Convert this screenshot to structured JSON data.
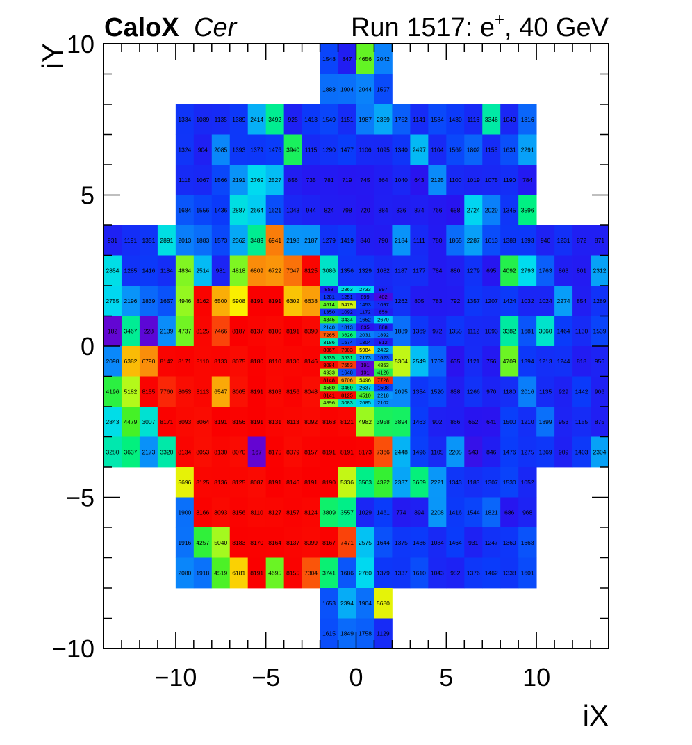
{
  "chart_data": {
    "type": "heatmap",
    "title_left_bold": "CaloX",
    "title_left_italic": "Cer",
    "title_right": "Run 1517: e",
    "title_right_sup": "+",
    "title_right_tail": ", 40 GeV",
    "xlabel": "iX",
    "ylabel": "iY",
    "xlim": [
      -14,
      14
    ],
    "ylim": [
      -10,
      10
    ],
    "xticks": [
      -10,
      -5,
      0,
      5,
      10
    ],
    "yticks": [
      -10,
      -5,
      0,
      5,
      10
    ],
    "zlim": [
      0,
      8191
    ],
    "rows": [
      {
        "y": 9,
        "x0": -2,
        "values": [
          1548,
          847,
          4656,
          2042
        ]
      },
      {
        "y": 8,
        "x0": -2,
        "values": [
          1888,
          1904,
          2044,
          1597
        ]
      },
      {
        "y": 7,
        "x0": -10,
        "values": [
          1334,
          1089,
          1135,
          1389,
          2414,
          3492,
          925,
          1413,
          1549,
          1151,
          1987,
          2359,
          1752,
          1141,
          1584,
          1430,
          1116,
          3346,
          1049,
          1816
        ]
      },
      {
        "y": 6,
        "x0": -10,
        "values": [
          1324,
          904,
          2085,
          1393,
          1379,
          1476,
          3940,
          1115,
          1290,
          1477,
          1106,
          1095,
          1340,
          2497,
          1104,
          1569,
          1802,
          1155,
          1631,
          2291
        ]
      },
      {
        "y": 5,
        "x0": -10,
        "values": [
          1118,
          1067,
          1566,
          2191,
          2769,
          2527,
          856,
          735,
          781,
          719,
          745,
          864,
          1040,
          643,
          2125,
          1100,
          1019,
          1075,
          1190,
          784
        ]
      },
      {
        "y": 4,
        "x0": -10,
        "values": [
          1684,
          1556,
          1436,
          2887,
          2664,
          1621,
          1043,
          944,
          824,
          798,
          720,
          884,
          836,
          874,
          766,
          658,
          2724,
          2029,
          1345,
          3596
        ]
      },
      {
        "y": 3,
        "x0": -14,
        "values": [
          931,
          1191,
          1351,
          2891,
          2013,
          1883,
          1573,
          2362,
          3489,
          6941,
          2198,
          2187,
          1279,
          1419,
          840,
          790,
          2184,
          1111,
          780,
          1865,
          2287,
          1613,
          1388,
          1393,
          940,
          1231,
          872,
          871
        ]
      },
      {
        "y": 2,
        "x0": -14,
        "values": [
          2854,
          1285,
          1416,
          1184,
          4834,
          2514,
          981,
          4818,
          6809,
          6722,
          7047,
          8125,
          3086,
          1356,
          1329,
          1082,
          1187,
          1177,
          784,
          880,
          1279,
          695,
          4092,
          2793,
          1763,
          863,
          801,
          2312
        ]
      },
      {
        "y": 1,
        "x0": -14,
        "values": [
          2755,
          2196,
          1839,
          1657,
          4946,
          8162,
          6500,
          5908,
          8191,
          8191,
          6302,
          6638,
          null,
          null,
          null,
          null,
          1262,
          805,
          783,
          792,
          1357,
          1207,
          1424,
          1032,
          1024,
          2274,
          854,
          1289
        ]
      },
      {
        "y": 0,
        "x0": -14,
        "values": [
          182,
          3467,
          228,
          2139,
          4737,
          8125,
          7466,
          8187,
          8137,
          8100,
          8191,
          8090,
          null,
          null,
          null,
          null,
          1889,
          1369,
          972,
          1355,
          1112,
          1093,
          3382,
          1681,
          3060,
          1464,
          1130,
          1539
        ]
      },
      {
        "y": -1,
        "x0": -14,
        "values": [
          2098,
          6382,
          6790,
          8142,
          8171,
          8110,
          8133,
          8075,
          8180,
          8110,
          8130,
          8146,
          null,
          null,
          null,
          null,
          5304,
          2549,
          1769,
          635,
          1121,
          756,
          4709,
          1394,
          1213,
          1244,
          818,
          956
        ]
      },
      {
        "y": -2,
        "x0": -14,
        "values": [
          4196,
          5182,
          8155,
          7760,
          8053,
          8113,
          6547,
          8005,
          8191,
          8103,
          8156,
          8048,
          null,
          null,
          null,
          null,
          2095,
          1354,
          1520,
          858,
          1266,
          970,
          1180,
          2016,
          1135,
          929,
          1442,
          906
        ]
      },
      {
        "y": -3,
        "x0": -14,
        "values": [
          2843,
          4479,
          3007,
          8171,
          8093,
          8064,
          8191,
          8156,
          8191,
          8131,
          8113,
          8092,
          8163,
          8121,
          4982,
          3958,
          3894,
          1463,
          902,
          866,
          652,
          641,
          1500,
          1210,
          1899,
          953,
          1155,
          875
        ]
      },
      {
        "y": -4,
        "x0": -14,
        "values": [
          3280,
          3637,
          2173,
          3320,
          8134,
          8053,
          8130,
          8070,
          167,
          8175,
          8079,
          8157,
          8191,
          8191,
          8173,
          7366,
          2448,
          1496,
          1105,
          2205,
          543,
          846,
          1476,
          1275,
          1369,
          909,
          1403,
          2304
        ]
      },
      {
        "y": -5,
        "x0": -10,
        "values": [
          5696,
          8125,
          8136,
          8125,
          8087,
          8191,
          8146,
          8191,
          8190,
          5336,
          3563,
          4322,
          2337,
          3669,
          2221,
          1343,
          1183,
          1307,
          1530,
          1052
        ]
      },
      {
        "y": -6,
        "x0": -10,
        "values": [
          1900,
          8166,
          8093,
          8156,
          8110,
          8127,
          8157,
          8124,
          3809,
          3557,
          1029,
          1461,
          774,
          894,
          2208,
          1416,
          1544,
          1821,
          686,
          968
        ]
      },
      {
        "y": -7,
        "x0": -10,
        "values": [
          1916,
          4257,
          5040,
          8183,
          8170,
          8164,
          8137,
          8099,
          8167,
          7471,
          2575,
          1644,
          1375,
          1436,
          1084,
          1464,
          931,
          1247,
          1360,
          1663
        ]
      },
      {
        "y": -8,
        "x0": -10,
        "values": [
          2080,
          1918,
          4519,
          6181,
          8191,
          4695,
          8155,
          7304,
          3741,
          1686,
          2760,
          1379,
          1337,
          1610,
          1043,
          952,
          1376,
          1462,
          1338,
          1601
        ]
      },
      {
        "y": -9,
        "x0": -2,
        "values": [
          1653,
          2394,
          1904,
          5680
        ]
      },
      {
        "y": -10,
        "x0": -2,
        "values": [
          1615,
          1849,
          1758,
          1129
        ]
      }
    ],
    "fine_x0": -2,
    "fine_rows": [
      {
        "y": 1.75,
        "values": [
          858,
          2863,
          2733,
          997
        ]
      },
      {
        "y": 1.5,
        "values": [
          1281,
          1251,
          899,
          402
        ]
      },
      {
        "y": 1.25,
        "values": [
          4614,
          5479,
          1453,
          1097
        ]
      },
      {
        "y": 1.0,
        "values": [
          1350,
          1092,
          1172,
          859
        ]
      },
      {
        "y": 0.75,
        "values": [
          4345,
          3434,
          1652,
          2670
        ]
      },
      {
        "y": 0.5,
        "values": [
          2140,
          1813,
          635,
          888
        ]
      },
      {
        "y": 0.25,
        "values": [
          7265,
          3626,
          2031,
          1892
        ]
      },
      {
        "y": 0.0,
        "values": [
          3186,
          1574,
          1304,
          812
        ]
      },
      {
        "y": -0.25,
        "values": [
          8067,
          7903,
          5984,
          2422
        ]
      },
      {
        "y": -0.5,
        "values": [
          3635,
          3531,
          2173,
          1623
        ]
      },
      {
        "y": -0.75,
        "values": [
          8084,
          7553,
          191,
          4853
        ]
      },
      {
        "y": -1.0,
        "values": [
          4933,
          1648,
          191,
          4126
        ]
      },
      {
        "y": -1.25,
        "values": [
          8148,
          6706,
          5496,
          7728
        ]
      },
      {
        "y": -1.5,
        "values": [
          4580,
          3469,
          2637,
          1508
        ]
      },
      {
        "y": -1.75,
        "values": [
          8141,
          8125,
          4510,
          2218
        ]
      },
      {
        "y": -2.0,
        "values": [
          4896,
          3083,
          2685,
          2102
        ]
      }
    ]
  }
}
